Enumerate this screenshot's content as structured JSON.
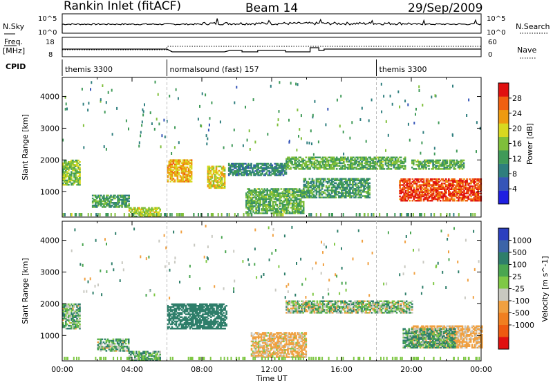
{
  "header": {
    "radar_title": "Rankin Inlet (fitACF)",
    "beam": "Beam 14",
    "date": "29/Sep/2009"
  },
  "noise_panel": {
    "left_label": "N.Sky",
    "right_label": "N.Search",
    "left_ticks": [
      "10^5",
      "10^0"
    ],
    "right_ticks": [
      "10^5",
      "10^0"
    ]
  },
  "freq_panel": {
    "left_label_line1": "Freq.",
    "left_label_line2": "[MHz]",
    "right_label": "Nave",
    "left_ticks": [
      "18",
      "8"
    ],
    "right_ticks": [
      "60",
      "0"
    ]
  },
  "cpid": {
    "label": "CPID",
    "segments": [
      {
        "start_hour": 0,
        "name": "themis 3300"
      },
      {
        "start_hour": 6,
        "name": "normalsound (fast) 157"
      },
      {
        "start_hour": 18,
        "name": "themis 3300"
      }
    ]
  },
  "colors": {
    "power_scale": [
      "#1f1fe0",
      "#3555b8",
      "#2e7e7e",
      "#3f9a58",
      "#7fbf3a",
      "#d8d820",
      "#ee9a10",
      "#f06010",
      "#e01010"
    ],
    "velocity_scale": [
      "#2c3fbf",
      "#3c64a8",
      "#2e7e6a",
      "#4aa650",
      "#7fc845",
      "#c8c8c0",
      "#f0a040",
      "#f07f20",
      "#ee5a10",
      "#e01010"
    ]
  },
  "chart_data": [
    {
      "type": "heatmap",
      "panel": "power",
      "xlabel": "",
      "ylabel": "Slant Range [km]",
      "xlim_hours": [
        0,
        24
      ],
      "ylim": [
        200,
        4600
      ],
      "y_ticks": [
        1000,
        2000,
        3000,
        4000
      ],
      "colorbar": {
        "label": "Power [dB]",
        "tick_labels": [
          "4",
          "8",
          "12",
          "16",
          "20",
          "24",
          "28"
        ],
        "range": [
          0,
          32
        ]
      },
      "echo_regions": [
        {
          "t0": 0.0,
          "t1": 1.0,
          "r0": 1200,
          "r1": 2000,
          "value": 16
        },
        {
          "t0": 1.7,
          "t1": 3.8,
          "r0": 500,
          "r1": 900,
          "value": 12
        },
        {
          "t0": 3.8,
          "t1": 5.6,
          "r0": 200,
          "r1": 500,
          "value": 18
        },
        {
          "t0": 6.0,
          "t1": 7.4,
          "r0": 1300,
          "r1": 2000,
          "value": 22
        },
        {
          "t0": 8.3,
          "t1": 9.3,
          "r0": 1100,
          "r1": 1800,
          "value": 20
        },
        {
          "t0": 9.5,
          "t1": 12.8,
          "r0": 1500,
          "r1": 1900,
          "value": 10
        },
        {
          "t0": 10.5,
          "t1": 13.8,
          "r0": 300,
          "r1": 1100,
          "value": 14
        },
        {
          "t0": 12.8,
          "t1": 19.6,
          "r0": 1700,
          "r1": 2100,
          "value": 14
        },
        {
          "t0": 13.8,
          "t1": 17.6,
          "r0": 800,
          "r1": 1400,
          "value": 12
        },
        {
          "t0": 19.3,
          "t1": 24.0,
          "r0": 700,
          "r1": 1400,
          "value": 28
        },
        {
          "t0": 20.0,
          "t1": 23.0,
          "r0": 1700,
          "r1": 2000,
          "value": 14
        }
      ]
    },
    {
      "type": "heatmap",
      "panel": "velocity",
      "xlabel": "Time UT",
      "ylabel": "Slant Range [km]",
      "xlim_hours": [
        0,
        24
      ],
      "x_tick_labels": [
        "00:00",
        "04:00",
        "08:00",
        "12:00",
        "16:00",
        "20:00",
        "00:00"
      ],
      "ylim": [
        200,
        4600
      ],
      "y_ticks": [
        1000,
        2000,
        3000,
        4000
      ],
      "colorbar": {
        "label": "Velocity [m s^-1]",
        "tick_labels": [
          "1000",
          "500",
          "100",
          "25",
          "-25",
          "-100",
          "-500",
          "-1000"
        ]
      },
      "echo_regions": [
        {
          "t0": 0.0,
          "t1": 1.0,
          "r0": 1200,
          "r1": 2000,
          "value": 40
        },
        {
          "t0": 2.0,
          "t1": 3.8,
          "r0": 500,
          "r1": 900,
          "value": 40
        },
        {
          "t0": 3.8,
          "t1": 5.6,
          "r0": 200,
          "r1": 500,
          "value": 60
        },
        {
          "t0": 6.0,
          "t1": 9.4,
          "r0": 1200,
          "r1": 2000,
          "value": 300
        },
        {
          "t0": 10.8,
          "t1": 14.0,
          "r0": 300,
          "r1": 1100,
          "value": -150
        },
        {
          "t0": 12.8,
          "t1": 20.0,
          "r0": 1700,
          "r1": 2100,
          "value": 0
        },
        {
          "t0": 20.0,
          "t1": 24.0,
          "r0": 600,
          "r1": 1300,
          "value": -200
        },
        {
          "t0": 19.5,
          "t1": 22.5,
          "r0": 600,
          "r1": 1200,
          "value": 80
        }
      ]
    }
  ]
}
